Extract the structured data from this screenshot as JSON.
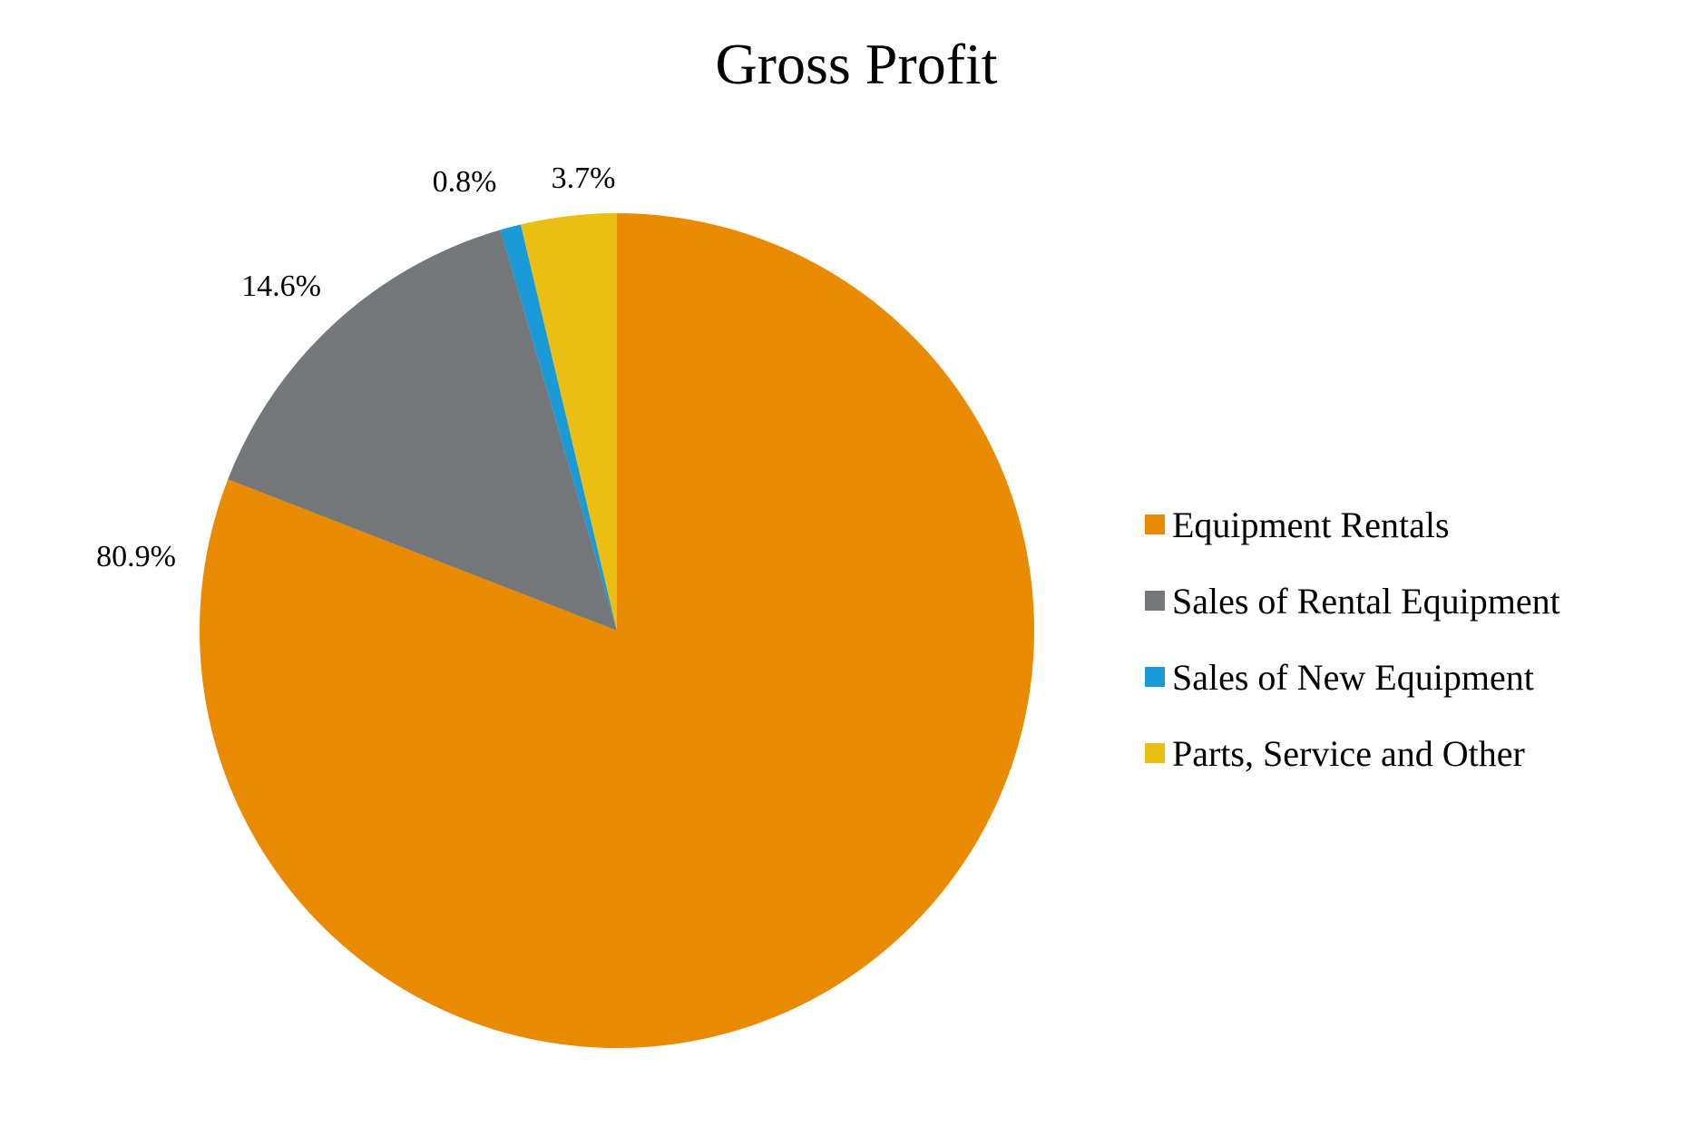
{
  "chart_data": {
    "type": "pie",
    "title": "Gross Profit",
    "start_angle_deg": 0,
    "direction": "clockwise",
    "legend_position": "right",
    "slices": [
      {
        "name": "Equipment Rentals",
        "value": 80.9,
        "label": "80.9%",
        "color": "#EA8A00"
      },
      {
        "name": "Sales of Rental Equipment",
        "value": 14.6,
        "label": "14.6%",
        "color": "#75787B"
      },
      {
        "name": "Sales of New Equipment",
        "value": 0.8,
        "label": "0.8%",
        "color": "#1A9AD6"
      },
      {
        "name": "Parts, Service and Other",
        "value": 3.7,
        "label": "3.7%",
        "color": "#EBBE12"
      }
    ]
  }
}
